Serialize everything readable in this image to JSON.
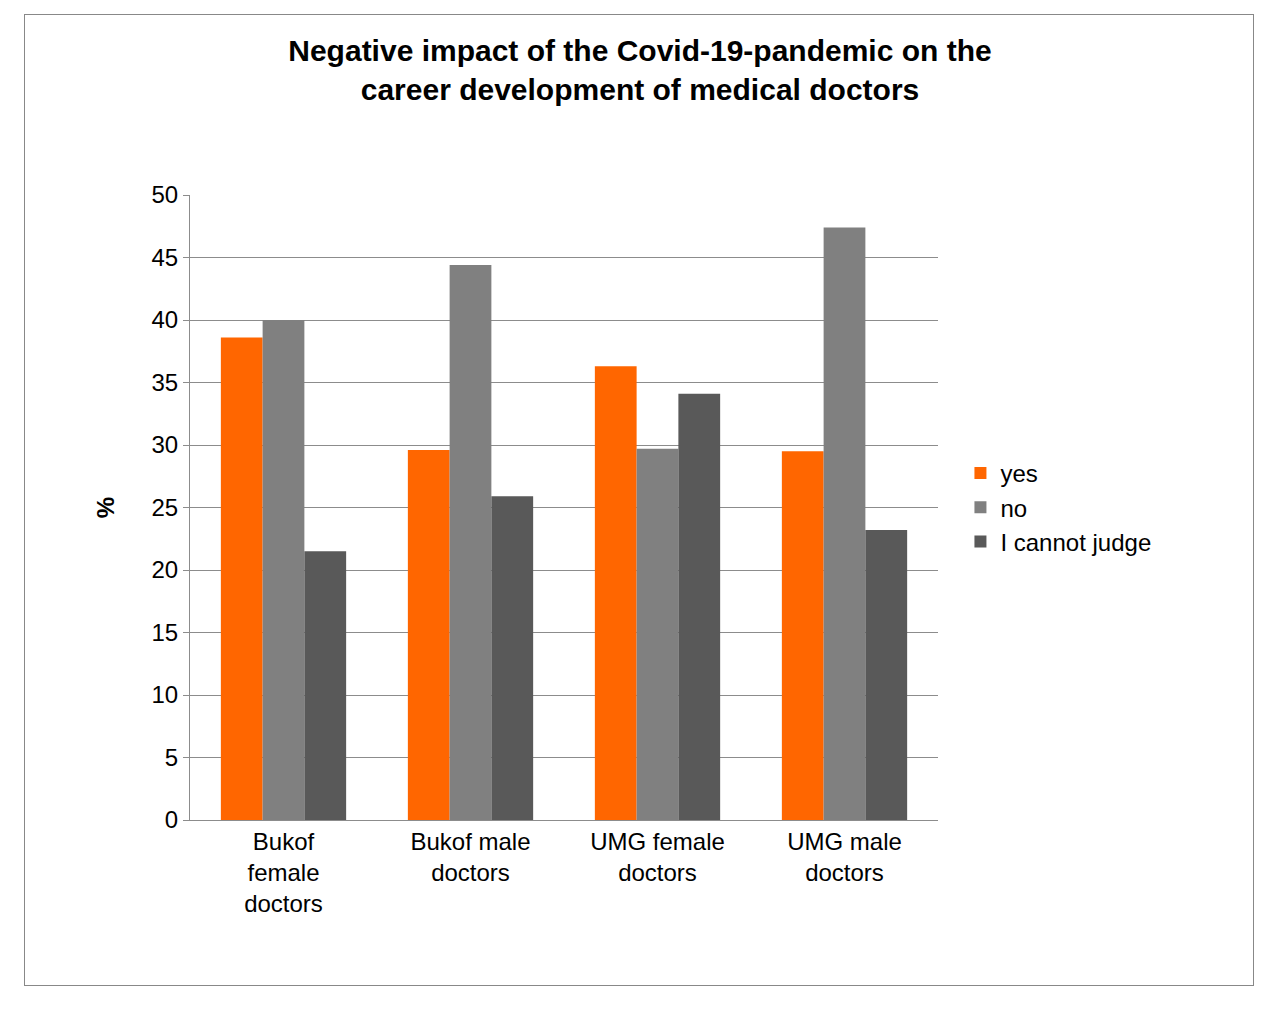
{
  "chart_data": {
    "type": "bar",
    "title": "Negative impact of the Covid-19-pandemic on the career development of medical doctors",
    "y_label": "%",
    "categories": [
      "Bukof female doctors",
      "Bukof male doctors",
      "UMG female doctors",
      "UMG male doctors"
    ],
    "series": [
      {
        "name": "yes",
        "color": "#ff6600",
        "values": [
          38.6,
          29.6,
          36.3,
          29.5
        ]
      },
      {
        "name": "no",
        "color": "#808080",
        "values": [
          40.0,
          44.4,
          29.7,
          47.4
        ]
      },
      {
        "name": "I cannot judge",
        "color": "#595959",
        "values": [
          21.5,
          25.9,
          34.1,
          23.2
        ]
      }
    ],
    "ylim": [
      0,
      50
    ],
    "yticks": [
      0,
      5,
      10,
      15,
      20,
      25,
      30,
      35,
      40,
      45,
      50
    ],
    "grid": true,
    "legend": "right"
  }
}
